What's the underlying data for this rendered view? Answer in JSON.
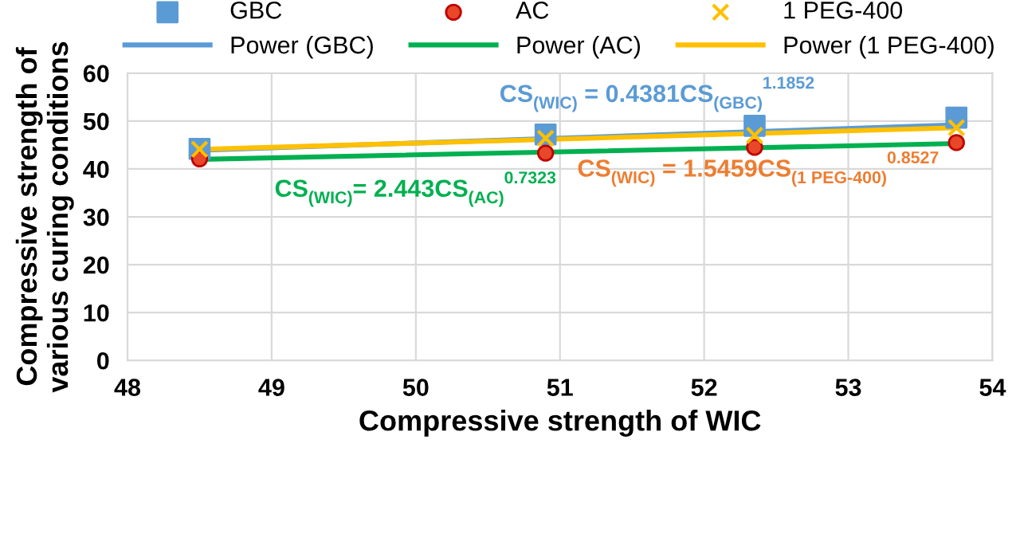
{
  "chart_data": {
    "type": "scatter",
    "xlabel": "Compressive strength of WIC",
    "ylabel": "Compressive strength of\nvarious curing conditions",
    "xlim": [
      48,
      54
    ],
    "xticks": [
      48,
      49,
      50,
      51,
      52,
      53,
      54
    ],
    "ylim": [
      0,
      60
    ],
    "yticks": [
      0,
      10,
      20,
      30,
      40,
      50,
      60
    ],
    "grid": true,
    "legend": "top",
    "series": [
      {
        "name": "GBC",
        "color": "#5b9bd5",
        "marker": "square",
        "x": [
          48.5,
          50.9,
          52.35,
          53.75
        ],
        "values": [
          44.2,
          47.2,
          49.0,
          50.7
        ]
      },
      {
        "name": "AC",
        "color": "#e8472a",
        "marker": "circle",
        "x": [
          48.5,
          50.9,
          52.35,
          53.75
        ],
        "values": [
          42.1,
          43.3,
          44.5,
          45.5
        ]
      },
      {
        "name": "1 PEG-400",
        "color": "#ffc000",
        "marker": "cross",
        "x": [
          48.5,
          50.9,
          52.35,
          53.75
        ],
        "values": [
          44.1,
          46.4,
          47.0,
          48.6
        ]
      },
      {
        "name": "Power (GBC)",
        "type": "line",
        "color": "#5b9bd5",
        "x": [
          48.5,
          53.75
        ],
        "values": [
          43.9,
          49.2
        ]
      },
      {
        "name": "Power (AC)",
        "type": "line",
        "color": "#00b050",
        "x": [
          48.5,
          53.75
        ],
        "values": [
          42.0,
          45.3
        ]
      },
      {
        "name": "Power (1 PEG-400)",
        "type": "line",
        "color": "#ffc000",
        "x": [
          48.5,
          53.75
        ],
        "values": [
          44.1,
          48.6
        ]
      }
    ],
    "annotations": [
      "CS$_{(WIC)}$ = 0.4381CS$_{(GBC)}$$^{1.1852}$",
      "CS$_{(WIC)}$= 2.443CS$_{(AC)}$$^{0.7323}$",
      "CS$_{(WIC)}$ = 1.5459CS$_{(1 PEG-400)}$$^{0.8527}$"
    ]
  }
}
